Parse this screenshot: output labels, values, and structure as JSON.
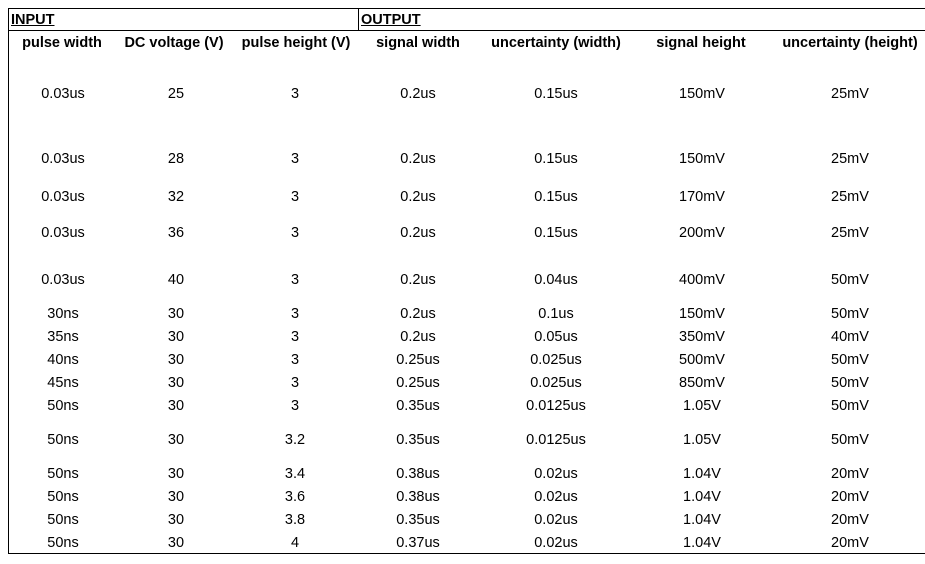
{
  "sections": {
    "input": "INPUT",
    "output": "OUTPUT"
  },
  "columns": [
    "pulse width",
    "DC voltage (V)",
    "pulse height (V)",
    "signal width",
    "uncertainty (width)",
    "signal height",
    "uncertainty (height)"
  ],
  "rows": [
    [
      "0.03us",
      "25",
      "3",
      "0.2us",
      "0.15us",
      "150mV",
      "25mV"
    ],
    [
      "0.03us",
      "28",
      "3",
      "0.2us",
      "0.15us",
      "150mV",
      "25mV"
    ],
    [
      "0.03us",
      "32",
      "3",
      "0.2us",
      "0.15us",
      "170mV",
      "25mV"
    ],
    [
      "0.03us",
      "36",
      "3",
      "0.2us",
      "0.15us",
      "200mV",
      "25mV"
    ],
    [
      "0.03us",
      "40",
      "3",
      "0.2us",
      "0.04us",
      "400mV",
      "50mV"
    ],
    [
      "30ns",
      "30",
      "3",
      "0.2us",
      "0.1us",
      "150mV",
      "50mV"
    ],
    [
      "35ns",
      "30",
      "3",
      "0.2us",
      "0.05us",
      "350mV",
      "40mV"
    ],
    [
      "40ns",
      "30",
      "3",
      "0.25us",
      "0.025us",
      "500mV",
      "50mV"
    ],
    [
      "45ns",
      "30",
      "3",
      "0.25us",
      "0.025us",
      "850mV",
      "50mV"
    ],
    [
      "50ns",
      "30",
      "3",
      "0.35us",
      "0.0125us",
      "1.05V",
      "50mV"
    ],
    [
      "50ns",
      "30",
      "3.2",
      "0.35us",
      "0.0125us",
      "1.05V",
      "50mV"
    ],
    [
      "50ns",
      "30",
      "3.4",
      "0.38us",
      "0.02us",
      "1.04V",
      "20mV"
    ],
    [
      "50ns",
      "30",
      "3.6",
      "0.38us",
      "0.02us",
      "1.04V",
      "20mV"
    ],
    [
      "50ns",
      "30",
      "3.8",
      "0.35us",
      "0.02us",
      "1.04V",
      "20mV"
    ],
    [
      "50ns",
      "30",
      "4",
      "0.37us",
      "0.02us",
      "1.04V",
      "20mV"
    ]
  ]
}
